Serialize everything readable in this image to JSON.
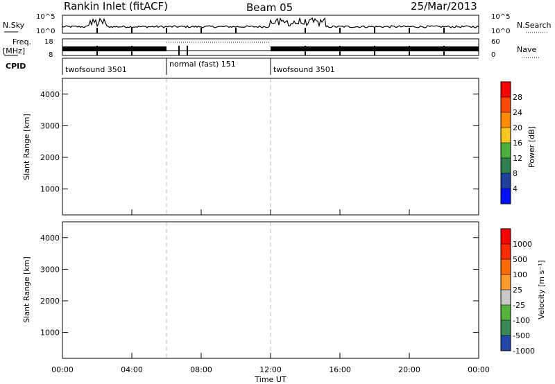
{
  "header": {
    "station": "Rankin Inlet (fitACF)",
    "beam": "Beam 05",
    "date": "25/Mar/2013"
  },
  "chart_data": [
    {
      "type": "line",
      "name_label": "N.Sky",
      "right_label": "N.Search",
      "left_ticks": [
        "10^5",
        "10^0"
      ],
      "right_ticks": [
        "10^5",
        "10^0"
      ],
      "scale": "log",
      "note": ""
    },
    {
      "type": "line",
      "left_label_top": "Freq.",
      "left_label_unit": "[MHz]",
      "right_label": "Nave",
      "left_ticks": [
        "18",
        "8"
      ],
      "right_ticks": [
        "60",
        "0"
      ]
    },
    {
      "type": "table",
      "label": "CPID",
      "segments": [
        {
          "name": "twofsound 3501",
          "start_h": 0,
          "end_h": 6
        },
        {
          "name": "normal (fast) 151",
          "start_h": 6,
          "end_h": 12
        },
        {
          "name": "twofsound 3501",
          "start_h": 12,
          "end_h": 24
        }
      ]
    },
    {
      "type": "heatmap",
      "ylabel": "Slant Range [km]",
      "colorbar_label": "Power [dB]",
      "colorbar_ticks": [
        "28",
        "24",
        "20",
        "16",
        "12",
        "8",
        "4"
      ],
      "y_ticks": [
        "4000",
        "3000",
        "2000",
        "1000"
      ],
      "ylim": [
        180,
        4500
      ]
    },
    {
      "type": "heatmap",
      "ylabel": "Slant Range [km]",
      "colorbar_label": "Velocity [m s⁻¹]",
      "colorbar_ticks": [
        "1000",
        "500",
        "100",
        "25",
        "-25",
        "-100",
        "-500",
        "-1000"
      ],
      "y_ticks": [
        "4000",
        "3000",
        "2000",
        "1000"
      ],
      "ylim": [
        180,
        4500
      ]
    }
  ],
  "x_axis": {
    "label": "Time UT",
    "ticks": [
      "00:00",
      "04:00",
      "08:00",
      "12:00",
      "16:00",
      "20:00",
      "00:00"
    ]
  },
  "colors": {
    "power": [
      "#0010ff",
      "#2040a0",
      "#2f7f4f",
      "#4cae3c",
      "#f7c51f",
      "#ff8c00",
      "#ff4a00",
      "#ff0000"
    ],
    "velocity": [
      "#2446a8",
      "#3a8a55",
      "#55b23d",
      "#c8c8c8",
      "#ff9a2c",
      "#ff6a00",
      "#ff2c00",
      "#ff0000"
    ]
  }
}
